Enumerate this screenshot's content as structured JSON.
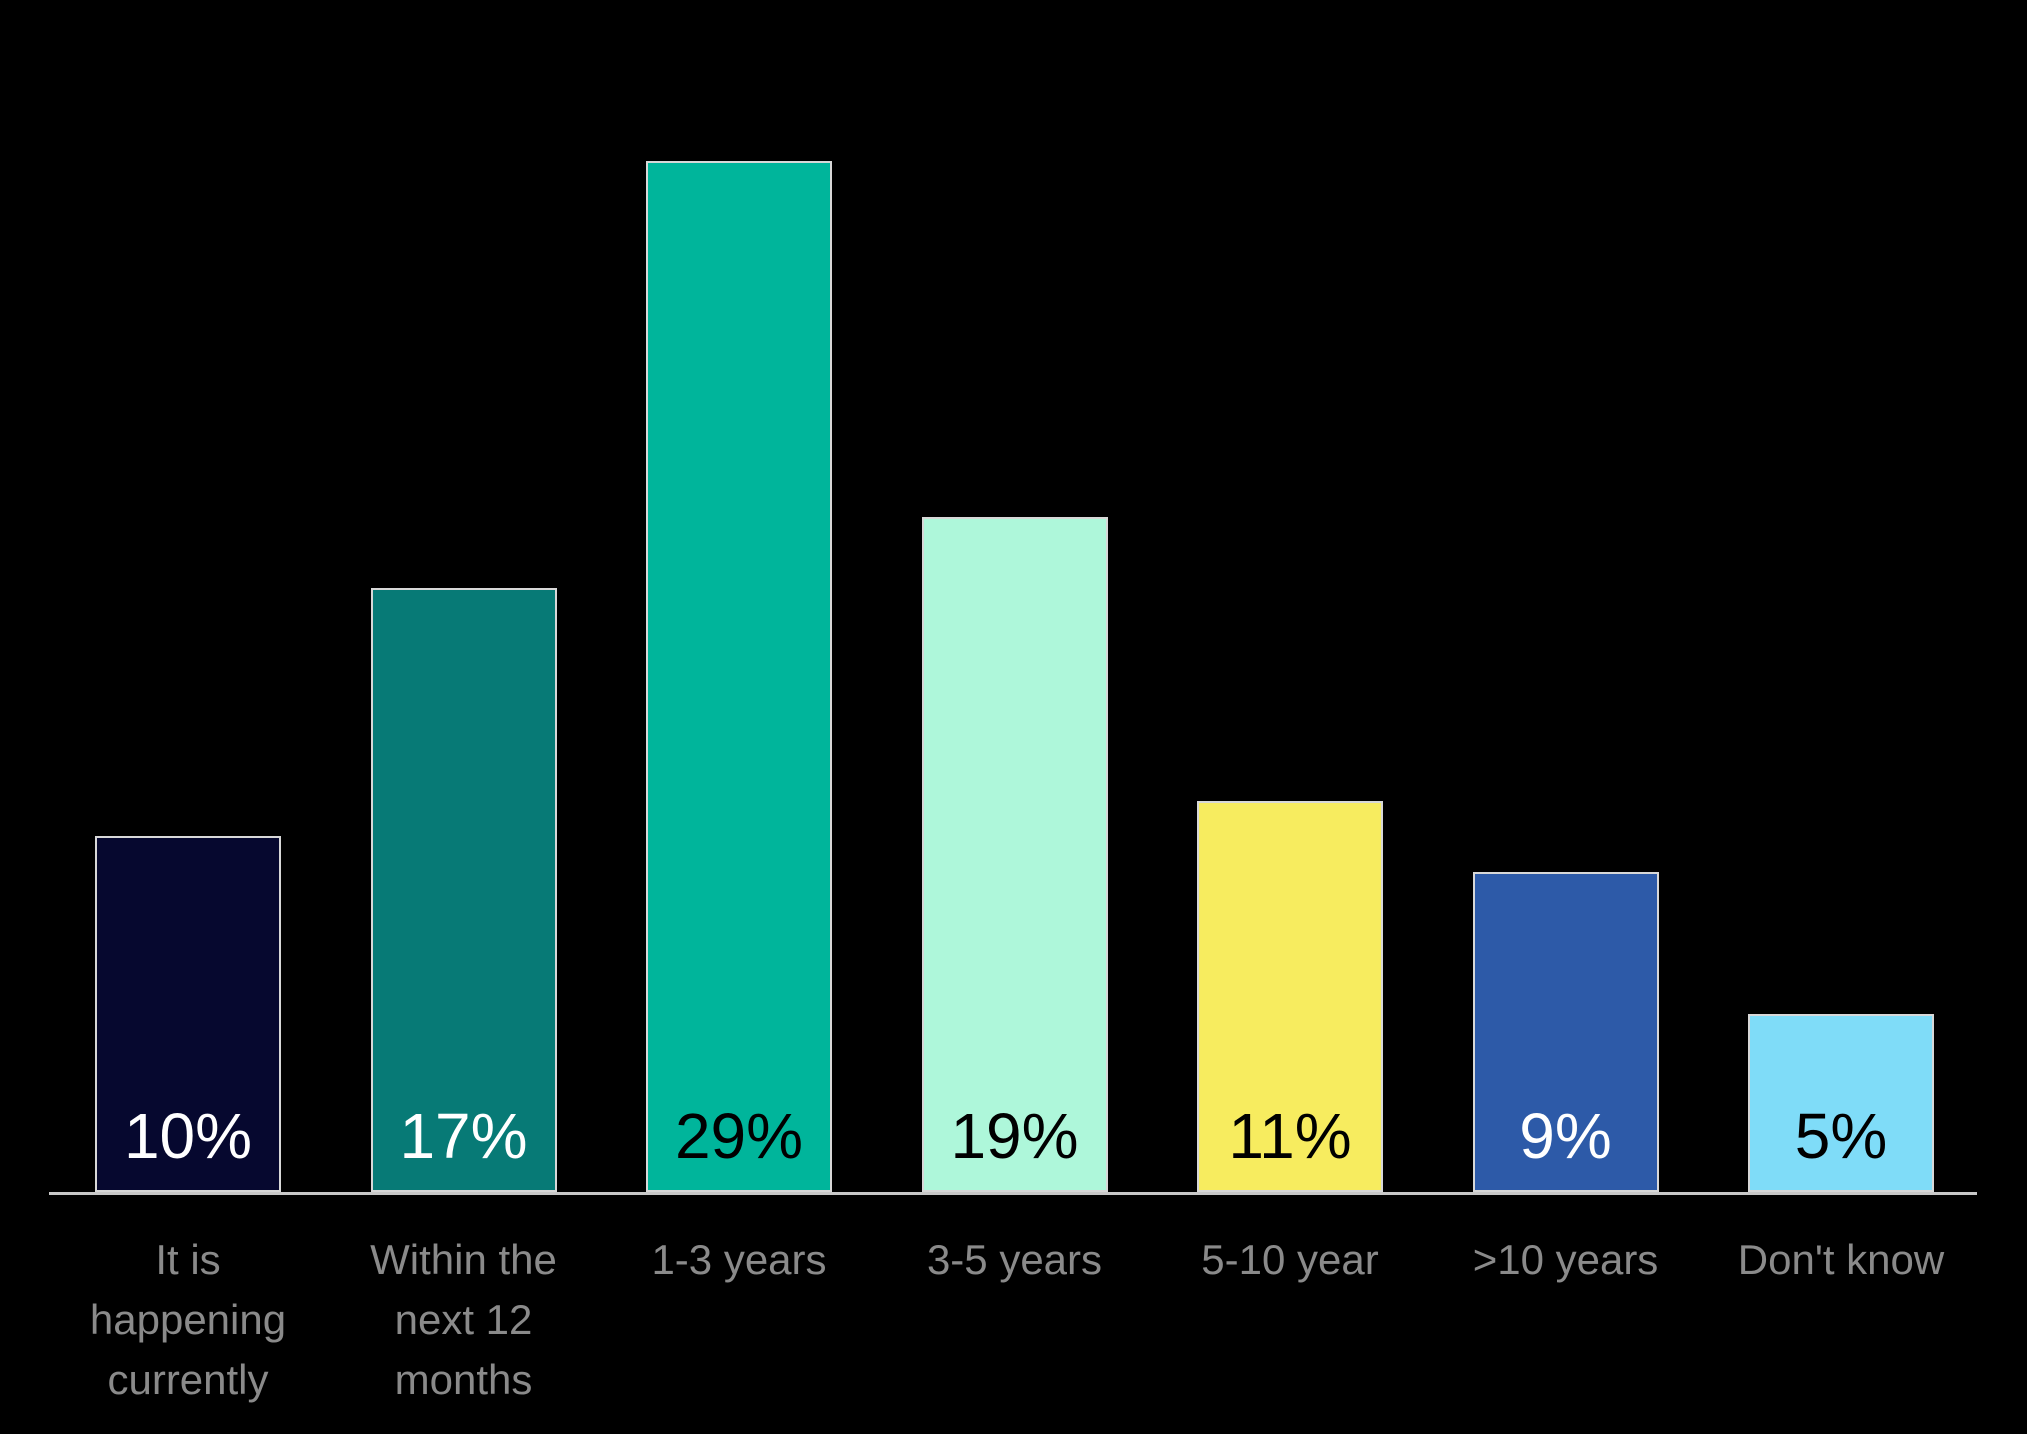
{
  "page": {
    "background_color": "#000000"
  },
  "chart_data": {
    "type": "bar",
    "title": "",
    "xlabel": "",
    "ylabel": "",
    "categories": [
      "It is\nhappening\ncurrently",
      "Within the\nnext 12\nmonths",
      "1-3 years",
      "3-5 years",
      "5-10 year",
      ">10 years",
      "Don't know"
    ],
    "values": [
      10,
      17,
      29,
      19,
      11,
      9,
      5
    ],
    "data_labels": [
      "10%",
      "17%",
      "29%",
      "19%",
      "11%",
      "9%",
      "5%"
    ],
    "bar_colors": [
      "#06082f",
      "#077a76",
      "#00b59b",
      "#aef7da",
      "#f7ec5f",
      "#2d5aa8",
      "#7fdcf8"
    ],
    "data_label_colors": [
      "#ffffff",
      "#ffffff",
      "#000000",
      "#000000",
      "#000000",
      "#ffffff",
      "#000000"
    ],
    "category_label_color": "#8a8a8a",
    "bar_border_color": "#d8d8d8",
    "axis_line_color": "#c8c8c8",
    "ylim": [
      0,
      30
    ],
    "grid": false,
    "legend": false,
    "orientation": "vertical"
  }
}
